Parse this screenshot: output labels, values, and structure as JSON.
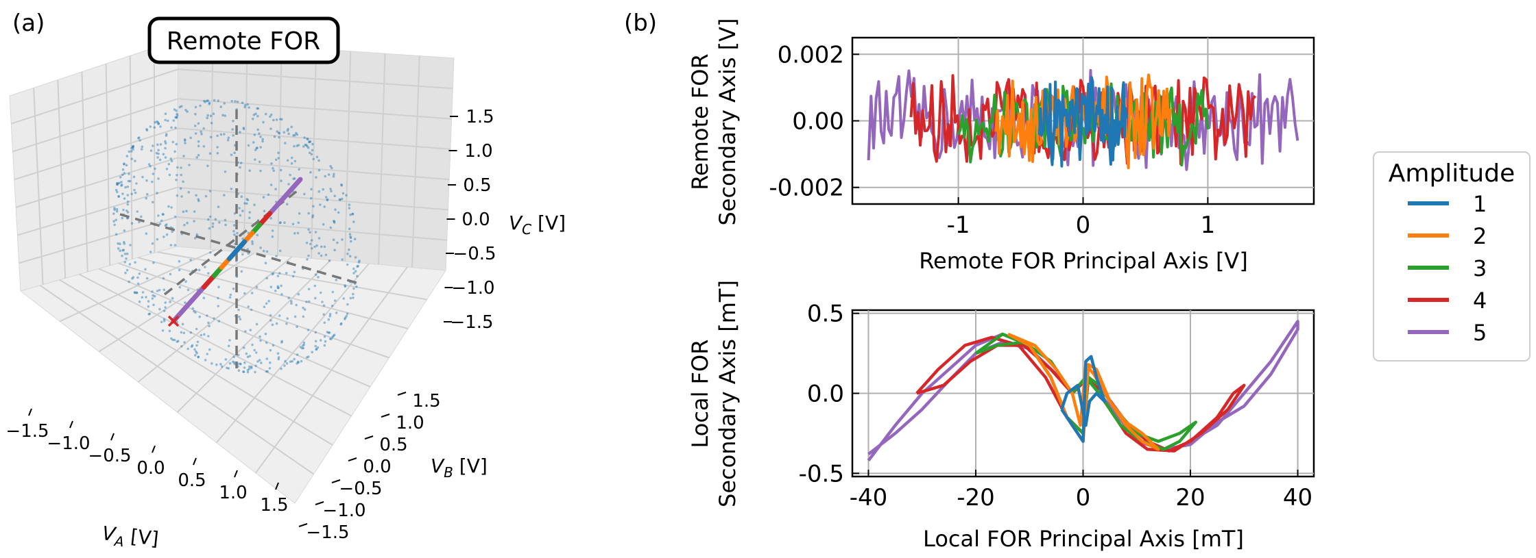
{
  "figure": {
    "panel_a_label": "(a)",
    "panel_b_label": "(b)",
    "colors": {
      "1": "#1f77b4",
      "2": "#ff7f0e",
      "3": "#2ca02c",
      "4": "#d62728",
      "5": "#9467bd"
    }
  },
  "chart_data": [
    {
      "type": "scatter",
      "projection": "3d",
      "title": "Remote FOR",
      "xlabel": "V_A [V]",
      "ylabel": "V_B [V]",
      "zlabel": "V_C [V]",
      "xlim": [
        -1.75,
        1.75
      ],
      "ylim": [
        -1.75,
        1.75
      ],
      "zlim": [
        -1.75,
        1.75
      ],
      "x_ticks": [
        "−1.5",
        "−1.0",
        "−0.5",
        "0.0",
        "0.5",
        "1.0",
        "1.5"
      ],
      "y_ticks": [
        "−1.5",
        "−1.0",
        "−0.5",
        "0.0",
        "0.5",
        "1.0",
        "1.5"
      ],
      "z_ticks": [
        "1.5",
        "1.0",
        "0.5",
        "0.0",
        "−0.5",
        "−1.0",
        "−1.5"
      ],
      "cloud": {
        "description_radius_V": 1.8,
        "approx_points": 800,
        "color": "#1f77b4"
      },
      "principal_line": {
        "from": [
          -1.3,
          0.4,
          -1.2
        ],
        "to": [
          1.3,
          -0.4,
          1.2
        ]
      },
      "marker_x": {
        "position": [
          -1.35,
          0.45,
          -1.25
        ],
        "color": "#d62728"
      },
      "grid": true
    },
    {
      "type": "line",
      "xlabel": "Remote FOR Principal Axis [V]",
      "ylabel": "Remote FOR\nSecondary Axis [V]",
      "xlim": [
        -1.85,
        1.85
      ],
      "ylim": [
        -0.0025,
        0.0025
      ],
      "x_ticks": [
        -1,
        0,
        1
      ],
      "y_ticks": [
        -0.002,
        0.0,
        0.002
      ],
      "x_tick_labels": [
        "-1",
        "0",
        "1"
      ],
      "y_tick_labels": [
        "-0.002",
        "0.00",
        "0.002"
      ],
      "grid": true,
      "series": [
        {
          "name": "1",
          "x_range": [
            -0.35,
            0.35
          ],
          "noise_amplitude": 0.0015
        },
        {
          "name": "2",
          "x_range": [
            -0.7,
            0.7
          ],
          "noise_amplitude": 0.0015
        },
        {
          "name": "3",
          "x_range": [
            -1.0,
            1.0
          ],
          "noise_amplitude": 0.0015
        },
        {
          "name": "4",
          "x_range": [
            -1.38,
            1.38
          ],
          "noise_amplitude": 0.0015
        },
        {
          "name": "5",
          "x_range": [
            -1.72,
            1.72
          ],
          "noise_amplitude": 0.0016
        }
      ]
    },
    {
      "type": "line",
      "xlabel": "Local FOR Principal Axis [mT]",
      "ylabel": "Local FOR\nSecondary Axis [mT]",
      "xlim": [
        -43,
        43
      ],
      "ylim": [
        -0.52,
        0.52
      ],
      "x_ticks": [
        -40,
        -20,
        0,
        20,
        40
      ],
      "y_ticks": [
        -0.5,
        0.0,
        0.5
      ],
      "x_tick_labels": [
        "-40",
        "-20",
        "0",
        "20",
        "40"
      ],
      "y_tick_labels": [
        "-0.5",
        "0.0",
        "0.5"
      ],
      "grid": true,
      "series": [
        {
          "name": "1",
          "points": [
            [
              -4,
              -0.1
            ],
            [
              -2,
              -0.2
            ],
            [
              0,
              -0.3
            ],
            [
              0.5,
              0.2
            ],
            [
              1.5,
              0.23
            ],
            [
              2.5,
              0.1
            ],
            [
              4,
              -0.05
            ],
            [
              2.5,
              0.0
            ],
            [
              1.2,
              -0.05
            ],
            [
              0.5,
              -0.2
            ],
            [
              -1,
              0.05
            ],
            [
              -3,
              0.0
            ],
            [
              -4,
              -0.1
            ]
          ]
        },
        {
          "name": "2",
          "points": [
            [
              -14,
              0.37
            ],
            [
              -10,
              0.3
            ],
            [
              -6,
              0.1
            ],
            [
              -3,
              -0.15
            ],
            [
              0,
              -0.3
            ],
            [
              1,
              0.18
            ],
            [
              2.5,
              0.15
            ],
            [
              5,
              -0.05
            ],
            [
              8,
              -0.2
            ],
            [
              11,
              -0.3
            ],
            [
              14,
              -0.35
            ],
            [
              11,
              -0.25
            ],
            [
              8,
              -0.18
            ],
            [
              5,
              -0.05
            ],
            [
              2,
              0.12
            ],
            [
              0.5,
              0.18
            ],
            [
              -0.5,
              -0.2
            ],
            [
              -2,
              0.0
            ],
            [
              -5,
              0.15
            ],
            [
              -9,
              0.3
            ],
            [
              -14,
              0.37
            ]
          ]
        },
        {
          "name": "3",
          "points": [
            [
              -20,
              0.25
            ],
            [
              -15,
              0.37
            ],
            [
              -10,
              0.3
            ],
            [
              -6,
              0.1
            ],
            [
              -3,
              -0.15
            ],
            [
              0,
              -0.25
            ],
            [
              1,
              0.1
            ],
            [
              3,
              0.05
            ],
            [
              6,
              -0.1
            ],
            [
              10,
              -0.25
            ],
            [
              14,
              -0.3
            ],
            [
              18,
              -0.25
            ],
            [
              21,
              -0.18
            ],
            [
              18,
              -0.3
            ],
            [
              15,
              -0.35
            ],
            [
              11,
              -0.3
            ],
            [
              7,
              -0.2
            ],
            [
              3,
              0.0
            ],
            [
              0.5,
              0.1
            ],
            [
              -2,
              0.0
            ],
            [
              -6,
              0.2
            ],
            [
              -11,
              0.32
            ],
            [
              -16,
              0.3
            ],
            [
              -20,
              0.25
            ]
          ]
        },
        {
          "name": "4",
          "points": [
            [
              -31,
              0.0
            ],
            [
              -27,
              0.15
            ],
            [
              -22,
              0.3
            ],
            [
              -17,
              0.35
            ],
            [
              -12,
              0.3
            ],
            [
              -7,
              0.1
            ],
            [
              -3,
              -0.15
            ],
            [
              0,
              -0.25
            ],
            [
              1,
              0.1
            ],
            [
              4,
              0.0
            ],
            [
              8,
              -0.18
            ],
            [
              12,
              -0.3
            ],
            [
              16,
              -0.36
            ],
            [
              20,
              -0.3
            ],
            [
              25,
              -0.15
            ],
            [
              28,
              0.0
            ],
            [
              30,
              0.05
            ],
            [
              27,
              -0.1
            ],
            [
              22,
              -0.25
            ],
            [
              17,
              -0.36
            ],
            [
              12,
              -0.35
            ],
            [
              8,
              -0.25
            ],
            [
              4,
              -0.05
            ],
            [
              1,
              0.1
            ],
            [
              -2,
              0.0
            ],
            [
              -6,
              0.15
            ],
            [
              -11,
              0.3
            ],
            [
              -16,
              0.3
            ],
            [
              -21,
              0.2
            ],
            [
              -26,
              0.05
            ],
            [
              -31,
              0.0
            ]
          ]
        },
        {
          "name": "5",
          "points": [
            [
              -40,
              -0.42
            ],
            [
              -35,
              -0.2
            ],
            [
              -30,
              0.0
            ],
            [
              -25,
              0.15
            ],
            [
              -20,
              0.3
            ],
            [
              -15,
              0.37
            ],
            [
              -10,
              0.3
            ],
            [
              -6,
              0.1
            ],
            [
              -3,
              -0.15
            ],
            [
              0,
              -0.25
            ],
            [
              1,
              0.1
            ],
            [
              4,
              0.0
            ],
            [
              8,
              -0.18
            ],
            [
              12,
              -0.3
            ],
            [
              16,
              -0.36
            ],
            [
              20,
              -0.3
            ],
            [
              25,
              -0.2
            ],
            [
              30,
              0.0
            ],
            [
              35,
              0.2
            ],
            [
              40,
              0.45
            ],
            [
              40,
              0.4
            ],
            [
              35,
              0.12
            ],
            [
              30,
              -0.08
            ],
            [
              25,
              -0.18
            ],
            [
              20,
              -0.32
            ],
            [
              15,
              -0.35
            ],
            [
              10,
              -0.3
            ],
            [
              6,
              -0.12
            ],
            [
              3,
              0.0
            ],
            [
              0.5,
              0.1
            ],
            [
              -2,
              0.0
            ],
            [
              -5,
              0.12
            ],
            [
              -10,
              0.28
            ],
            [
              -15,
              0.32
            ],
            [
              -20,
              0.25
            ],
            [
              -25,
              0.08
            ],
            [
              -30,
              -0.1
            ],
            [
              -35,
              -0.25
            ],
            [
              -40,
              -0.38
            ]
          ]
        }
      ]
    }
  ],
  "legend": {
    "title": "Amplitude",
    "entries": [
      "1",
      "2",
      "3",
      "4",
      "5"
    ]
  }
}
